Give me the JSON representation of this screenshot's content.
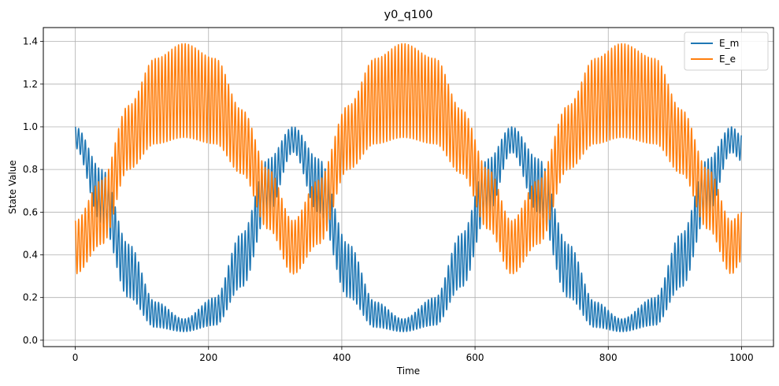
{
  "chart_data": {
    "type": "line",
    "title": "y0_q100",
    "xlabel": "Time",
    "ylabel": "State Value",
    "xlim": [
      -48,
      1048
    ],
    "ylim": [
      -0.03,
      1.465
    ],
    "xticks": [
      0,
      200,
      400,
      600,
      800,
      1000
    ],
    "xtick_labels": [
      "0",
      "200",
      "400",
      "600",
      "800",
      "1000"
    ],
    "yticks": [
      0.0,
      0.2,
      0.4,
      0.6,
      0.8,
      1.0,
      1.2,
      1.4
    ],
    "ytick_labels": [
      "0.0",
      "0.2",
      "0.4",
      "0.6",
      "0.8",
      "1.0",
      "1.2",
      "1.4"
    ],
    "grid": true,
    "legend_position": "top-right",
    "x_range": [
      0,
      1000
    ],
    "series": [
      {
        "name": "E_m",
        "color": "#1f77b4",
        "description_points": [
          {
            "t": 0,
            "low": 0.9,
            "high": 1.0
          },
          {
            "t": 40,
            "low": 0.55,
            "high": 0.8
          },
          {
            "t": 80,
            "low": 0.2,
            "high": 0.45
          },
          {
            "t": 120,
            "low": 0.06,
            "high": 0.18
          },
          {
            "t": 163,
            "low": 0.04,
            "high": 0.1
          },
          {
            "t": 210,
            "low": 0.07,
            "high": 0.2
          },
          {
            "t": 250,
            "low": 0.25,
            "high": 0.5
          },
          {
            "t": 290,
            "low": 0.6,
            "high": 0.85
          },
          {
            "t": 327,
            "low": 0.88,
            "high": 1.0
          },
          {
            "t": 365,
            "low": 0.6,
            "high": 0.85
          },
          {
            "t": 410,
            "low": 0.2,
            "high": 0.45
          },
          {
            "t": 450,
            "low": 0.06,
            "high": 0.18
          },
          {
            "t": 492,
            "low": 0.04,
            "high": 0.1
          },
          {
            "t": 540,
            "low": 0.07,
            "high": 0.2
          },
          {
            "t": 580,
            "low": 0.25,
            "high": 0.5
          },
          {
            "t": 620,
            "low": 0.6,
            "high": 0.85
          },
          {
            "t": 655,
            "low": 0.88,
            "high": 1.0
          },
          {
            "t": 695,
            "low": 0.6,
            "high": 0.85
          },
          {
            "t": 740,
            "low": 0.2,
            "high": 0.45
          },
          {
            "t": 780,
            "low": 0.06,
            "high": 0.18
          },
          {
            "t": 820,
            "low": 0.04,
            "high": 0.1
          },
          {
            "t": 870,
            "low": 0.07,
            "high": 0.2
          },
          {
            "t": 910,
            "low": 0.25,
            "high": 0.5
          },
          {
            "t": 950,
            "low": 0.6,
            "high": 0.85
          },
          {
            "t": 985,
            "low": 0.88,
            "high": 1.0
          },
          {
            "t": 1000,
            "low": 0.84,
            "high": 0.96
          }
        ]
      },
      {
        "name": "E_e",
        "color": "#ff7f0e",
        "description_points": [
          {
            "t": 0,
            "low": 0.31,
            "high": 0.56
          },
          {
            "t": 40,
            "low": 0.45,
            "high": 0.75
          },
          {
            "t": 80,
            "low": 0.8,
            "high": 1.1
          },
          {
            "t": 120,
            "low": 0.92,
            "high": 1.32
          },
          {
            "t": 163,
            "low": 0.95,
            "high": 1.39
          },
          {
            "t": 210,
            "low": 0.92,
            "high": 1.32
          },
          {
            "t": 250,
            "low": 0.78,
            "high": 1.08
          },
          {
            "t": 290,
            "low": 0.52,
            "high": 0.8
          },
          {
            "t": 327,
            "low": 0.31,
            "high": 0.56
          },
          {
            "t": 365,
            "low": 0.45,
            "high": 0.75
          },
          {
            "t": 410,
            "low": 0.8,
            "high": 1.1
          },
          {
            "t": 450,
            "low": 0.92,
            "high": 1.32
          },
          {
            "t": 492,
            "low": 0.95,
            "high": 1.39
          },
          {
            "t": 540,
            "low": 0.92,
            "high": 1.32
          },
          {
            "t": 580,
            "low": 0.78,
            "high": 1.08
          },
          {
            "t": 620,
            "low": 0.52,
            "high": 0.8
          },
          {
            "t": 655,
            "low": 0.31,
            "high": 0.56
          },
          {
            "t": 695,
            "low": 0.45,
            "high": 0.75
          },
          {
            "t": 740,
            "low": 0.8,
            "high": 1.1
          },
          {
            "t": 780,
            "low": 0.92,
            "high": 1.32
          },
          {
            "t": 820,
            "low": 0.95,
            "high": 1.39
          },
          {
            "t": 870,
            "low": 0.92,
            "high": 1.32
          },
          {
            "t": 910,
            "low": 0.78,
            "high": 1.08
          },
          {
            "t": 950,
            "low": 0.52,
            "high": 0.8
          },
          {
            "t": 985,
            "low": 0.31,
            "high": 0.56
          },
          {
            "t": 1000,
            "low": 0.37,
            "high": 0.6
          }
        ]
      }
    ]
  }
}
